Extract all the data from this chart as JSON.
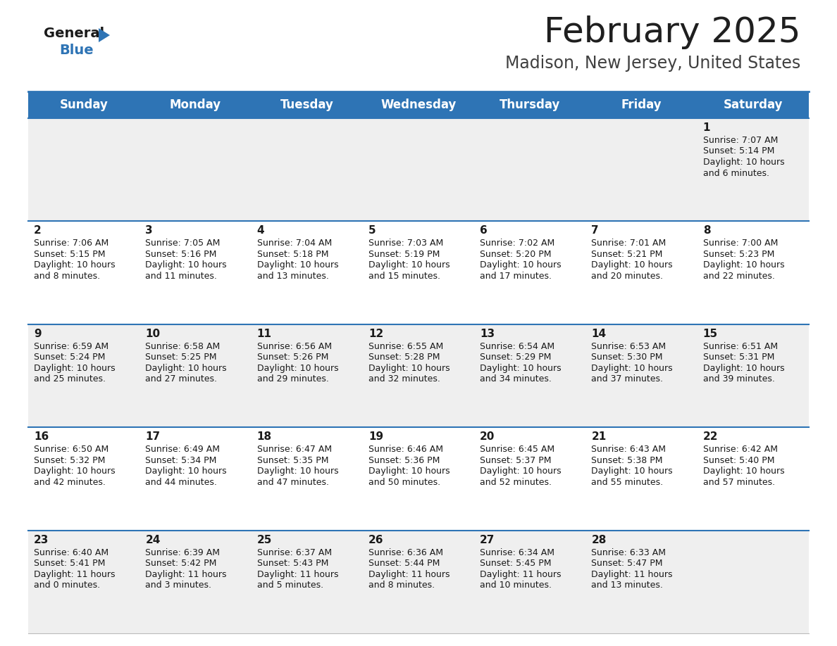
{
  "title": "February 2025",
  "subtitle": "Madison, New Jersey, United States",
  "header_color": "#2E74B5",
  "header_text_color": "#FFFFFF",
  "background_color": "#FFFFFF",
  "cell_bg_row0": "#EFEFEF",
  "cell_bg_row1": "#FFFFFF",
  "cell_bg_row2": "#EFEFEF",
  "cell_bg_row3": "#FFFFFF",
  "cell_bg_row4": "#EFEFEF",
  "row_line_color": "#2E74B5",
  "days_of_week": [
    "Sunday",
    "Monday",
    "Tuesday",
    "Wednesday",
    "Thursday",
    "Friday",
    "Saturday"
  ],
  "calendar_data": [
    [
      {
        "day": null,
        "sunrise": null,
        "sunset": null,
        "daylight": null
      },
      {
        "day": null,
        "sunrise": null,
        "sunset": null,
        "daylight": null
      },
      {
        "day": null,
        "sunrise": null,
        "sunset": null,
        "daylight": null
      },
      {
        "day": null,
        "sunrise": null,
        "sunset": null,
        "daylight": null
      },
      {
        "day": null,
        "sunrise": null,
        "sunset": null,
        "daylight": null
      },
      {
        "day": null,
        "sunrise": null,
        "sunset": null,
        "daylight": null
      },
      {
        "day": 1,
        "sunrise": "7:07 AM",
        "sunset": "5:14 PM",
        "daylight_line1": "Daylight: 10 hours",
        "daylight_line2": "and 6 minutes."
      }
    ],
    [
      {
        "day": 2,
        "sunrise": "7:06 AM",
        "sunset": "5:15 PM",
        "daylight_line1": "Daylight: 10 hours",
        "daylight_line2": "and 8 minutes."
      },
      {
        "day": 3,
        "sunrise": "7:05 AM",
        "sunset": "5:16 PM",
        "daylight_line1": "Daylight: 10 hours",
        "daylight_line2": "and 11 minutes."
      },
      {
        "day": 4,
        "sunrise": "7:04 AM",
        "sunset": "5:18 PM",
        "daylight_line1": "Daylight: 10 hours",
        "daylight_line2": "and 13 minutes."
      },
      {
        "day": 5,
        "sunrise": "7:03 AM",
        "sunset": "5:19 PM",
        "daylight_line1": "Daylight: 10 hours",
        "daylight_line2": "and 15 minutes."
      },
      {
        "day": 6,
        "sunrise": "7:02 AM",
        "sunset": "5:20 PM",
        "daylight_line1": "Daylight: 10 hours",
        "daylight_line2": "and 17 minutes."
      },
      {
        "day": 7,
        "sunrise": "7:01 AM",
        "sunset": "5:21 PM",
        "daylight_line1": "Daylight: 10 hours",
        "daylight_line2": "and 20 minutes."
      },
      {
        "day": 8,
        "sunrise": "7:00 AM",
        "sunset": "5:23 PM",
        "daylight_line1": "Daylight: 10 hours",
        "daylight_line2": "and 22 minutes."
      }
    ],
    [
      {
        "day": 9,
        "sunrise": "6:59 AM",
        "sunset": "5:24 PM",
        "daylight_line1": "Daylight: 10 hours",
        "daylight_line2": "and 25 minutes."
      },
      {
        "day": 10,
        "sunrise": "6:58 AM",
        "sunset": "5:25 PM",
        "daylight_line1": "Daylight: 10 hours",
        "daylight_line2": "and 27 minutes."
      },
      {
        "day": 11,
        "sunrise": "6:56 AM",
        "sunset": "5:26 PM",
        "daylight_line1": "Daylight: 10 hours",
        "daylight_line2": "and 29 minutes."
      },
      {
        "day": 12,
        "sunrise": "6:55 AM",
        "sunset": "5:28 PM",
        "daylight_line1": "Daylight: 10 hours",
        "daylight_line2": "and 32 minutes."
      },
      {
        "day": 13,
        "sunrise": "6:54 AM",
        "sunset": "5:29 PM",
        "daylight_line1": "Daylight: 10 hours",
        "daylight_line2": "and 34 minutes."
      },
      {
        "day": 14,
        "sunrise": "6:53 AM",
        "sunset": "5:30 PM",
        "daylight_line1": "Daylight: 10 hours",
        "daylight_line2": "and 37 minutes."
      },
      {
        "day": 15,
        "sunrise": "6:51 AM",
        "sunset": "5:31 PM",
        "daylight_line1": "Daylight: 10 hours",
        "daylight_line2": "and 39 minutes."
      }
    ],
    [
      {
        "day": 16,
        "sunrise": "6:50 AM",
        "sunset": "5:32 PM",
        "daylight_line1": "Daylight: 10 hours",
        "daylight_line2": "and 42 minutes."
      },
      {
        "day": 17,
        "sunrise": "6:49 AM",
        "sunset": "5:34 PM",
        "daylight_line1": "Daylight: 10 hours",
        "daylight_line2": "and 44 minutes."
      },
      {
        "day": 18,
        "sunrise": "6:47 AM",
        "sunset": "5:35 PM",
        "daylight_line1": "Daylight: 10 hours",
        "daylight_line2": "and 47 minutes."
      },
      {
        "day": 19,
        "sunrise": "6:46 AM",
        "sunset": "5:36 PM",
        "daylight_line1": "Daylight: 10 hours",
        "daylight_line2": "and 50 minutes."
      },
      {
        "day": 20,
        "sunrise": "6:45 AM",
        "sunset": "5:37 PM",
        "daylight_line1": "Daylight: 10 hours",
        "daylight_line2": "and 52 minutes."
      },
      {
        "day": 21,
        "sunrise": "6:43 AM",
        "sunset": "5:38 PM",
        "daylight_line1": "Daylight: 10 hours",
        "daylight_line2": "and 55 minutes."
      },
      {
        "day": 22,
        "sunrise": "6:42 AM",
        "sunset": "5:40 PM",
        "daylight_line1": "Daylight: 10 hours",
        "daylight_line2": "and 57 minutes."
      }
    ],
    [
      {
        "day": 23,
        "sunrise": "6:40 AM",
        "sunset": "5:41 PM",
        "daylight_line1": "Daylight: 11 hours",
        "daylight_line2": "and 0 minutes."
      },
      {
        "day": 24,
        "sunrise": "6:39 AM",
        "sunset": "5:42 PM",
        "daylight_line1": "Daylight: 11 hours",
        "daylight_line2": "and 3 minutes."
      },
      {
        "day": 25,
        "sunrise": "6:37 AM",
        "sunset": "5:43 PM",
        "daylight_line1": "Daylight: 11 hours",
        "daylight_line2": "and 5 minutes."
      },
      {
        "day": 26,
        "sunrise": "6:36 AM",
        "sunset": "5:44 PM",
        "daylight_line1": "Daylight: 11 hours",
        "daylight_line2": "and 8 minutes."
      },
      {
        "day": 27,
        "sunrise": "6:34 AM",
        "sunset": "5:45 PM",
        "daylight_line1": "Daylight: 11 hours",
        "daylight_line2": "and 10 minutes."
      },
      {
        "day": 28,
        "sunrise": "6:33 AM",
        "sunset": "5:47 PM",
        "daylight_line1": "Daylight: 11 hours",
        "daylight_line2": "and 13 minutes."
      },
      {
        "day": null,
        "sunrise": null,
        "sunset": null,
        "daylight_line1": null,
        "daylight_line2": null
      }
    ]
  ]
}
